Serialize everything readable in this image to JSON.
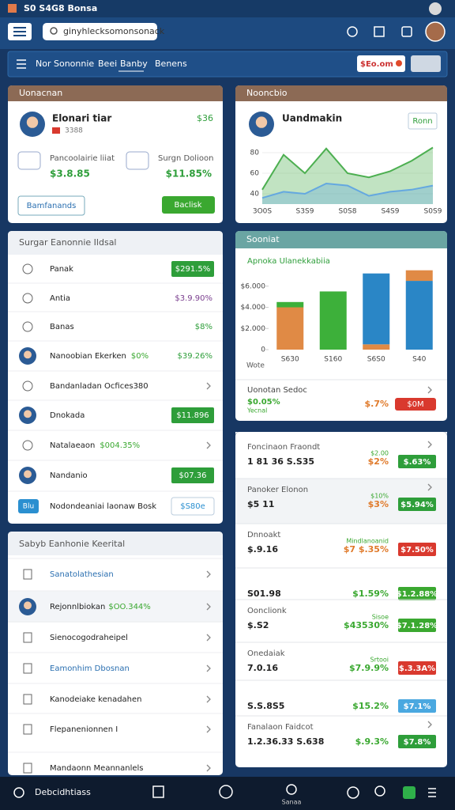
{
  "status_bar": {
    "text": "S0 S4G8 Bonsa"
  },
  "search": {
    "placeholder": "ginyhlecksomonsonack"
  },
  "nav": {
    "tabs": [
      "Nor Sononnie",
      "Beei",
      "Banby",
      "Benens"
    ],
    "button": "$Eo.om"
  },
  "profile_card": {
    "title": "Uonacnan",
    "name": "Elonari tiar",
    "amount": "$36",
    "tag": "3388",
    "stats": [
      {
        "label": "Pancoolairie liiat",
        "value": "$3.8.85"
      },
      {
        "label": "Surgn Dolioon",
        "value": "$11.85%"
      }
    ],
    "buttons": [
      "Bamfanands",
      "Baclisk"
    ]
  },
  "trend_card": {
    "title": "Nooncbio",
    "name": "Uandmakin",
    "button": "Ronn",
    "chart_data": {
      "type": "area",
      "categories": [
        "3O0S",
        null,
        "S3S9",
        null,
        "S0S8",
        null,
        "S4S9",
        null,
        "S0S9"
      ],
      "series": [
        {
          "color": "#4caf50",
          "values": [
            44,
            78,
            60,
            84,
            60,
            56,
            62,
            72,
            85
          ]
        },
        {
          "color": "#64a8e0",
          "values": [
            36,
            42,
            40,
            50,
            48,
            38,
            42,
            44,
            48
          ]
        }
      ],
      "ylim": [
        30,
        90
      ],
      "yticks": [
        40,
        60,
        80
      ]
    }
  },
  "summary_card": {
    "title": "Sooniat",
    "chart_data": {
      "type": "bar",
      "title": "Apnoka Ulanekkabiia",
      "categories": [
        "S630",
        "S160",
        "S6S0",
        "S40"
      ],
      "x_label": "Wote",
      "stacked": true,
      "series": [
        {
          "color": "#e08a45",
          "values": [
            4000,
            0,
            500,
            0
          ]
        },
        {
          "color": "#3db03a",
          "values": [
            500,
            5500,
            0,
            0
          ]
        },
        {
          "color": "#2a86c6",
          "values": [
            0,
            0,
            6700,
            6500
          ]
        },
        {
          "color": "#e08a45",
          "values": [
            0,
            0,
            0,
            1000
          ]
        }
      ],
      "ylim": [
        0,
        8000
      ],
      "yticks": [
        0,
        {
          "value": 2000,
          "label": "$2.000"
        },
        {
          "value": 4000,
          "label": "$4.000"
        },
        {
          "value": 6000,
          "label": "$6.000"
        }
      ]
    },
    "footer": {
      "title": "Uonotan Sedoc",
      "value": "$0.05%",
      "note": "Yecnal",
      "pct": "$.7%",
      "badge": "$0M"
    }
  },
  "left_list": {
    "title": "Surgar Eanonnie Ildsal",
    "rows": [
      {
        "label": "Panak",
        "value": "$291.5%",
        "style": "badge",
        "color": "#2e9e3a"
      },
      {
        "label": "Antia",
        "value": "$3.9.90%",
        "style": "text",
        "color": "#7a3e8e"
      },
      {
        "label": "Banas",
        "value": "$8%",
        "style": "text",
        "color": "#2e9e3a"
      },
      {
        "label": "Nanoobian Ekerken",
        "note": "$0%",
        "value": "$39.26%",
        "style": "text",
        "color": "#2e9e3a"
      },
      {
        "label": "Bandanladan Ocfices380"
      },
      {
        "label": "Dnokada",
        "value": "$11.896",
        "style": "badge",
        "color": "#2e9e3a"
      },
      {
        "label": "Natalaeaon",
        "note": "$004.35%"
      },
      {
        "label": "Nandanio",
        "value": "$07.36",
        "style": "badge",
        "color": "#2e9e3a"
      },
      {
        "label": "Nodondeaniai laonaw Bosk",
        "tag": "Blu",
        "value": "$S80e",
        "style": "outline",
        "color": "#2a8fd0"
      }
    ]
  },
  "right_list": {
    "rows": [
      {
        "title": "Foncinaon Fraondt",
        "value": "1 81 36 S.S35",
        "note": "$2.00",
        "pct": "$2%",
        "pct_color": "#e07a2a",
        "badge": "$.63%",
        "badge_color": "#2e9e3a"
      },
      {
        "title": "Panoker Elonon",
        "value": "$5 11",
        "note": "$10%",
        "pct": "$3%",
        "pct_color": "#e07a2a",
        "badge": "$5.94%",
        "badge_color": "#2e9e3a"
      },
      {
        "title": "Dnnoakt",
        "value": "$.9.16",
        "note": "Mindlanoanid",
        "pct": "$7 $.35%",
        "pct_color": "#e07a2a",
        "badge": "$7.50%",
        "badge_color": "#d9392e"
      },
      {
        "value": "S01.98",
        "pct": "$1.59%",
        "pct_color": "#3aa830",
        "badge": "$1.2.88%",
        "badge_color": "#3aa830"
      },
      {
        "title": "Oonclionk",
        "value": "$.S2",
        "note": "Sisoe",
        "pct": "$43530%",
        "pct_color": "#3aa830",
        "badge": "$7.1.28%",
        "badge_color": "#3aa830"
      },
      {
        "title": "Onedaiak",
        "value": "7.0.16",
        "note": "Srtooi",
        "pct": "$7.9.9%",
        "pct_color": "#3aa830",
        "badge": "$.3.3A%",
        "badge_color": "#d9392e"
      },
      {
        "value": "S.S.8S5",
        "pct": "$15.2%",
        "pct_color": "#3aa830",
        "badge": "$7.1%",
        "badge_color": "#4aa8e0"
      },
      {
        "title": "Fanalaon Faidcot",
        "value": "1.2.36.33 S.638",
        "pct": "$.9.3%",
        "pct_color": "#3aa830",
        "badge": "$7.8%",
        "badge_color": "#2e9e3a"
      }
    ]
  },
  "menu_list": {
    "title": "Sabyb Eanhonie Keerital",
    "rows": [
      {
        "label": "Sanatolathesian",
        "color": "#2a6fb0"
      },
      {
        "label": "Rejonnlbiokan",
        "note": "$OO.344%"
      },
      {
        "label": "Sienocogodraheipel"
      },
      {
        "label": "Eamonhim Dbosnan",
        "color": "#2a6fb0"
      },
      {
        "label": "Kanodeiake kenadahen"
      },
      {
        "label": "Flepanenionnen I"
      },
      {
        "label": "Mandaonn Meannanlels"
      }
    ]
  },
  "bottom_bar": {
    "title": "Debcidhtiass",
    "label": "Sanaa"
  }
}
